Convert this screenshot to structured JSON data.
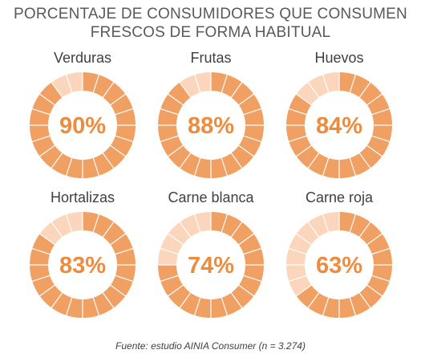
{
  "title_lines": [
    "PORCENTAJE DE CONSUMIDORES QUE CONSUMEN",
    "FRESCOS DE FORMA HABITUAL"
  ],
  "source": "Fuente: estudio AINIA Consumer (n = 3.274)",
  "colors": {
    "filled": "#f0a063",
    "unfilled": "#fbd6bc",
    "value_text": "#ed8b3e",
    "title": "#595959"
  },
  "chart_data": {
    "type": "donut",
    "segments_per_ring": 20,
    "items": [
      {
        "label": "Verduras",
        "value": 90,
        "value_label": "90%"
      },
      {
        "label": "Frutas",
        "value": 88,
        "value_label": "88%"
      },
      {
        "label": "Huevos",
        "value": 84,
        "value_label": "84%"
      },
      {
        "label": "Hortalizas",
        "value": 83,
        "value_label": "83%"
      },
      {
        "label": "Carne blanca",
        "value": 74,
        "value_label": "74%"
      },
      {
        "label": "Carne roja",
        "value": 63,
        "value_label": "63%"
      }
    ]
  }
}
